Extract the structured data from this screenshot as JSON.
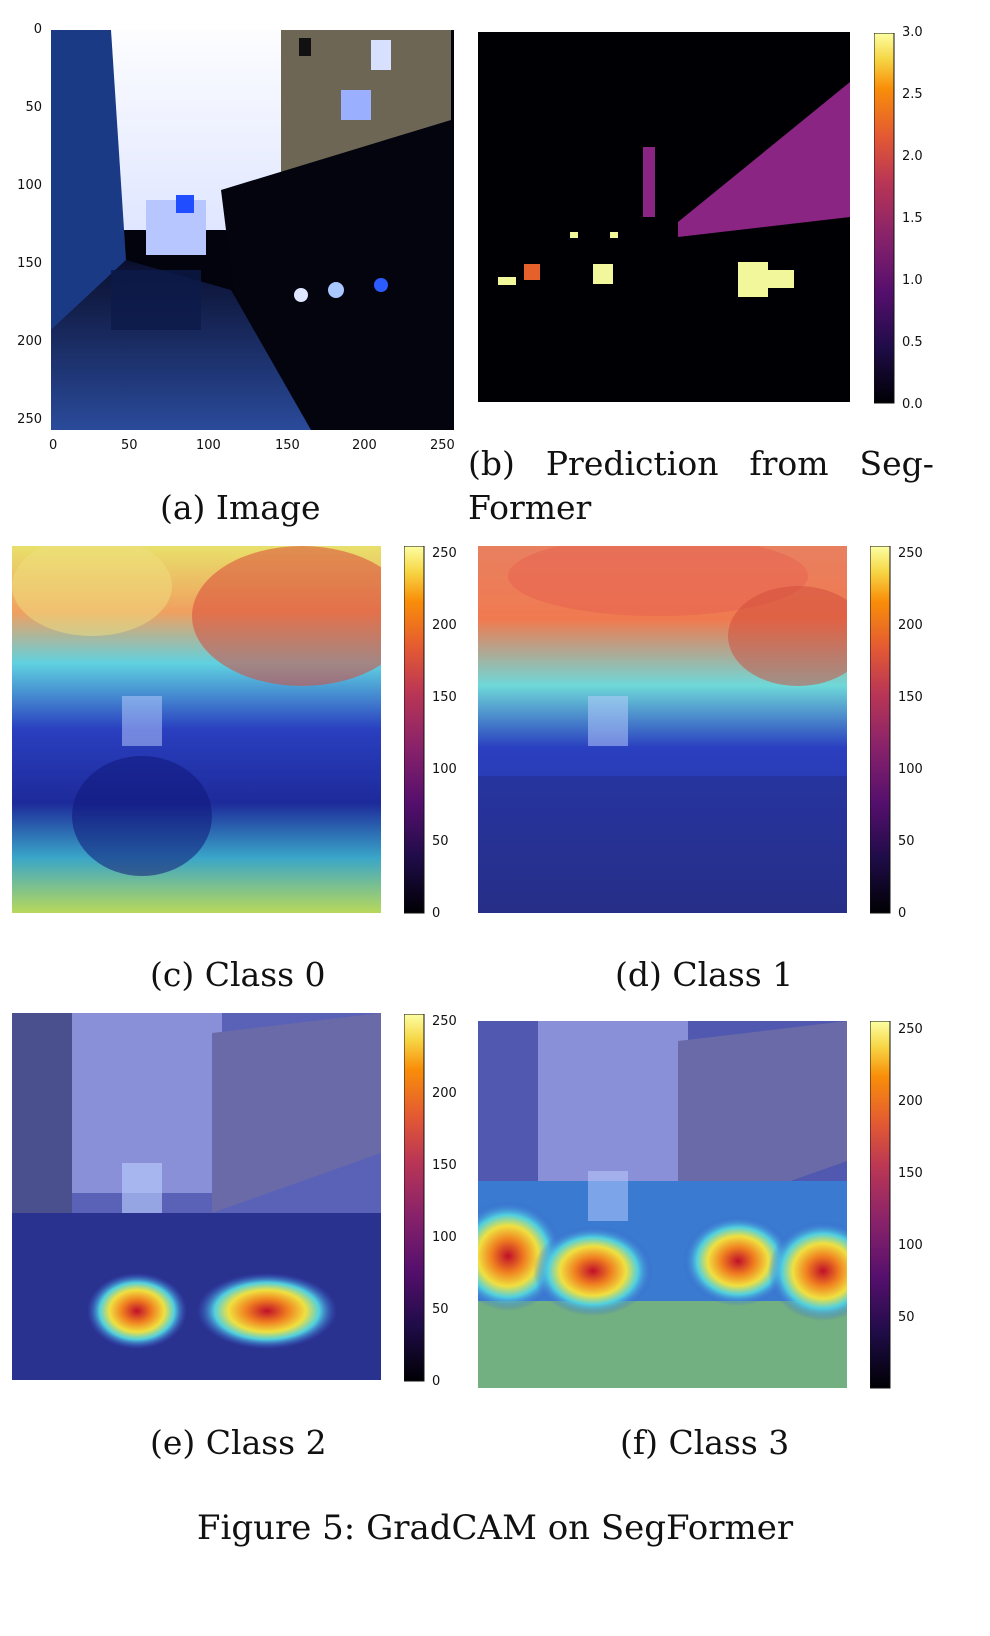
{
  "panel_a": {
    "caption": "(a) Image",
    "y_ticks": [
      "0",
      "50",
      "100",
      "150",
      "200",
      "250"
    ],
    "x_ticks": [
      "0",
      "50",
      "100",
      "150",
      "200",
      "250"
    ]
  },
  "panel_b": {
    "caption_line1": [
      "(b)",
      "Prediction",
      "from",
      "Seg-"
    ],
    "caption_line2": "Former",
    "colorbar_ticks": [
      "3.0",
      "2.5",
      "2.0",
      "1.5",
      "1.0",
      "0.5",
      "0.0"
    ]
  },
  "panel_c": {
    "caption": "(c) Class 0",
    "colorbar_ticks": [
      "250",
      "200",
      "150",
      "100",
      "50",
      "0"
    ]
  },
  "panel_d": {
    "caption": "(d) Class 1",
    "colorbar_ticks": [
      "250",
      "200",
      "150",
      "100",
      "50",
      "0"
    ]
  },
  "panel_e": {
    "caption": "(e) Class 2",
    "colorbar_ticks": [
      "250",
      "200",
      "150",
      "100",
      "50",
      "0"
    ]
  },
  "panel_f": {
    "caption": "(f) Class 3",
    "colorbar_ticks": [
      "250",
      "200",
      "150",
      "100",
      "50"
    ]
  },
  "figure_caption": "Figure 5: GradCAM on SegFormer",
  "colors": {
    "inferno_top": "#fcffa4",
    "inferno_mid": "#e55c30",
    "inferno_low": "#56106e",
    "inferno_bottom": "#000004",
    "class1_magenta": "#8a2583",
    "class3_yellow": "#f3f79c",
    "class2_orange": "#e5602a"
  }
}
